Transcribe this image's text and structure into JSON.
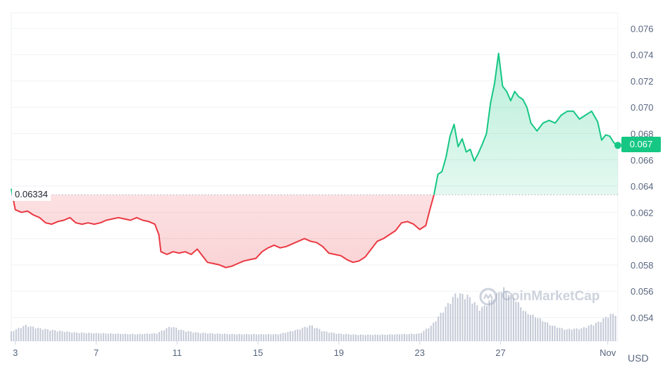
{
  "chart_data": {
    "type": "area",
    "currency": "USD",
    "x_ticks": [
      "3",
      "7",
      "11",
      "15",
      "19",
      "23",
      "27",
      "Nov"
    ],
    "y_ticks": [
      "0.076",
      "0.074",
      "0.072",
      "0.070",
      "0.068",
      "0.066",
      "0.064",
      "0.062",
      "0.060",
      "0.058",
      "0.056",
      "0.054"
    ],
    "ylim": [
      0.0522,
      0.0772
    ],
    "xlim": [
      2.8,
      32.8
    ],
    "reference_value": 0.06334,
    "reference_label": "0.06334",
    "current_value": 0.067,
    "current_label": "0.067",
    "up_color": "#16c784",
    "down_color": "#ea3943",
    "volume_color": "#c3c9d6",
    "grid": true,
    "price_series": [
      {
        "x": 2.8,
        "y": 0.0638
      },
      {
        "x": 3.0,
        "y": 0.0622
      },
      {
        "x": 3.3,
        "y": 0.062
      },
      {
        "x": 3.6,
        "y": 0.0621
      },
      {
        "x": 3.9,
        "y": 0.0618
      },
      {
        "x": 4.2,
        "y": 0.0616
      },
      {
        "x": 4.5,
        "y": 0.0612
      },
      {
        "x": 4.8,
        "y": 0.0611
      },
      {
        "x": 5.1,
        "y": 0.0613
      },
      {
        "x": 5.4,
        "y": 0.0614
      },
      {
        "x": 5.7,
        "y": 0.0616
      },
      {
        "x": 6.0,
        "y": 0.0612
      },
      {
        "x": 6.3,
        "y": 0.0611
      },
      {
        "x": 6.6,
        "y": 0.0612
      },
      {
        "x": 6.9,
        "y": 0.0611
      },
      {
        "x": 7.2,
        "y": 0.0612
      },
      {
        "x": 7.5,
        "y": 0.0614
      },
      {
        "x": 7.8,
        "y": 0.0615
      },
      {
        "x": 8.1,
        "y": 0.0616
      },
      {
        "x": 8.4,
        "y": 0.0615
      },
      {
        "x": 8.7,
        "y": 0.0614
      },
      {
        "x": 9.0,
        "y": 0.0616
      },
      {
        "x": 9.3,
        "y": 0.0614
      },
      {
        "x": 9.6,
        "y": 0.0613
      },
      {
        "x": 9.9,
        "y": 0.0611
      },
      {
        "x": 10.1,
        "y": 0.0603
      },
      {
        "x": 10.2,
        "y": 0.059
      },
      {
        "x": 10.5,
        "y": 0.0588
      },
      {
        "x": 10.8,
        "y": 0.059
      },
      {
        "x": 11.1,
        "y": 0.0589
      },
      {
        "x": 11.4,
        "y": 0.059
      },
      {
        "x": 11.7,
        "y": 0.0588
      },
      {
        "x": 12.0,
        "y": 0.0592
      },
      {
        "x": 12.3,
        "y": 0.0586
      },
      {
        "x": 12.5,
        "y": 0.0582
      },
      {
        "x": 12.8,
        "y": 0.0581
      },
      {
        "x": 13.1,
        "y": 0.058
      },
      {
        "x": 13.4,
        "y": 0.0578
      },
      {
        "x": 13.7,
        "y": 0.0579
      },
      {
        "x": 14.0,
        "y": 0.0581
      },
      {
        "x": 14.3,
        "y": 0.0583
      },
      {
        "x": 14.6,
        "y": 0.0584
      },
      {
        "x": 14.9,
        "y": 0.0585
      },
      {
        "x": 15.2,
        "y": 0.059
      },
      {
        "x": 15.5,
        "y": 0.0593
      },
      {
        "x": 15.8,
        "y": 0.0595
      },
      {
        "x": 16.1,
        "y": 0.0593
      },
      {
        "x": 16.4,
        "y": 0.0594
      },
      {
        "x": 16.7,
        "y": 0.0596
      },
      {
        "x": 17.0,
        "y": 0.0598
      },
      {
        "x": 17.3,
        "y": 0.06
      },
      {
        "x": 17.6,
        "y": 0.0598
      },
      {
        "x": 17.9,
        "y": 0.0597
      },
      {
        "x": 18.2,
        "y": 0.0594
      },
      {
        "x": 18.5,
        "y": 0.0589
      },
      {
        "x": 18.8,
        "y": 0.0588
      },
      {
        "x": 19.1,
        "y": 0.0587
      },
      {
        "x": 19.4,
        "y": 0.0584
      },
      {
        "x": 19.7,
        "y": 0.0582
      },
      {
        "x": 20.0,
        "y": 0.0583
      },
      {
        "x": 20.3,
        "y": 0.0586
      },
      {
        "x": 20.6,
        "y": 0.0592
      },
      {
        "x": 20.9,
        "y": 0.0598
      },
      {
        "x": 21.2,
        "y": 0.06
      },
      {
        "x": 21.5,
        "y": 0.0603
      },
      {
        "x": 21.8,
        "y": 0.0606
      },
      {
        "x": 22.1,
        "y": 0.0612
      },
      {
        "x": 22.4,
        "y": 0.0613
      },
      {
        "x": 22.7,
        "y": 0.0611
      },
      {
        "x": 23.0,
        "y": 0.0607
      },
      {
        "x": 23.3,
        "y": 0.061
      },
      {
        "x": 23.5,
        "y": 0.0622
      },
      {
        "x": 23.7,
        "y": 0.0633
      },
      {
        "x": 23.9,
        "y": 0.0649
      },
      {
        "x": 24.1,
        "y": 0.0651
      },
      {
        "x": 24.3,
        "y": 0.0662
      },
      {
        "x": 24.5,
        "y": 0.0678
      },
      {
        "x": 24.7,
        "y": 0.0687
      },
      {
        "x": 24.9,
        "y": 0.067
      },
      {
        "x": 25.1,
        "y": 0.0676
      },
      {
        "x": 25.3,
        "y": 0.0666
      },
      {
        "x": 25.5,
        "y": 0.0668
      },
      {
        "x": 25.7,
        "y": 0.0659
      },
      {
        "x": 25.9,
        "y": 0.0665
      },
      {
        "x": 26.1,
        "y": 0.0672
      },
      {
        "x": 26.3,
        "y": 0.068
      },
      {
        "x": 26.5,
        "y": 0.0703
      },
      {
        "x": 26.7,
        "y": 0.0718
      },
      {
        "x": 26.9,
        "y": 0.0741
      },
      {
        "x": 27.1,
        "y": 0.0716
      },
      {
        "x": 27.3,
        "y": 0.0712
      },
      {
        "x": 27.5,
        "y": 0.0705
      },
      {
        "x": 27.7,
        "y": 0.0712
      },
      {
        "x": 27.9,
        "y": 0.0708
      },
      {
        "x": 28.1,
        "y": 0.0706
      },
      {
        "x": 28.3,
        "y": 0.07
      },
      {
        "x": 28.5,
        "y": 0.0688
      },
      {
        "x": 28.8,
        "y": 0.0682
      },
      {
        "x": 29.1,
        "y": 0.0688
      },
      {
        "x": 29.4,
        "y": 0.069
      },
      {
        "x": 29.7,
        "y": 0.0688
      },
      {
        "x": 30.0,
        "y": 0.0694
      },
      {
        "x": 30.3,
        "y": 0.0697
      },
      {
        "x": 30.6,
        "y": 0.0697
      },
      {
        "x": 30.9,
        "y": 0.0691
      },
      {
        "x": 31.2,
        "y": 0.0694
      },
      {
        "x": 31.5,
        "y": 0.0697
      },
      {
        "x": 31.8,
        "y": 0.0689
      },
      {
        "x": 32.0,
        "y": 0.0675
      },
      {
        "x": 32.2,
        "y": 0.0679
      },
      {
        "x": 32.4,
        "y": 0.0678
      },
      {
        "x": 32.6,
        "y": 0.0673
      },
      {
        "x": 32.8,
        "y": 0.0671
      }
    ],
    "volume_series": [
      {
        "x": 2.8,
        "v": 0.18
      },
      {
        "x": 3.5,
        "v": 0.3
      },
      {
        "x": 4.2,
        "v": 0.24
      },
      {
        "x": 5.0,
        "v": 0.2
      },
      {
        "x": 6.0,
        "v": 0.16
      },
      {
        "x": 7.0,
        "v": 0.15
      },
      {
        "x": 8.0,
        "v": 0.14
      },
      {
        "x": 9.0,
        "v": 0.13
      },
      {
        "x": 10.0,
        "v": 0.15
      },
      {
        "x": 10.7,
        "v": 0.28
      },
      {
        "x": 11.3,
        "v": 0.2
      },
      {
        "x": 12.0,
        "v": 0.16
      },
      {
        "x": 13.0,
        "v": 0.14
      },
      {
        "x": 14.0,
        "v": 0.13
      },
      {
        "x": 15.0,
        "v": 0.13
      },
      {
        "x": 16.0,
        "v": 0.13
      },
      {
        "x": 17.0,
        "v": 0.22
      },
      {
        "x": 17.6,
        "v": 0.3
      },
      {
        "x": 18.3,
        "v": 0.18
      },
      {
        "x": 19.0,
        "v": 0.14
      },
      {
        "x": 20.0,
        "v": 0.12
      },
      {
        "x": 21.0,
        "v": 0.12
      },
      {
        "x": 22.0,
        "v": 0.13
      },
      {
        "x": 23.0,
        "v": 0.14
      },
      {
        "x": 23.6,
        "v": 0.3
      },
      {
        "x": 24.2,
        "v": 0.6
      },
      {
        "x": 24.8,
        "v": 0.9
      },
      {
        "x": 25.4,
        "v": 0.85
      },
      {
        "x": 26.0,
        "v": 0.6
      },
      {
        "x": 26.6,
        "v": 0.8
      },
      {
        "x": 27.1,
        "v": 1.0
      },
      {
        "x": 27.6,
        "v": 0.85
      },
      {
        "x": 28.2,
        "v": 0.55
      },
      {
        "x": 28.8,
        "v": 0.45
      },
      {
        "x": 29.5,
        "v": 0.3
      },
      {
        "x": 30.2,
        "v": 0.22
      },
      {
        "x": 31.0,
        "v": 0.24
      },
      {
        "x": 31.8,
        "v": 0.35
      },
      {
        "x": 32.4,
        "v": 0.5
      },
      {
        "x": 32.8,
        "v": 0.52
      }
    ]
  },
  "watermark": {
    "text": "CoinMarketCap",
    "icon": "coinmarketcap-logo-icon"
  },
  "unit_label": "USD"
}
